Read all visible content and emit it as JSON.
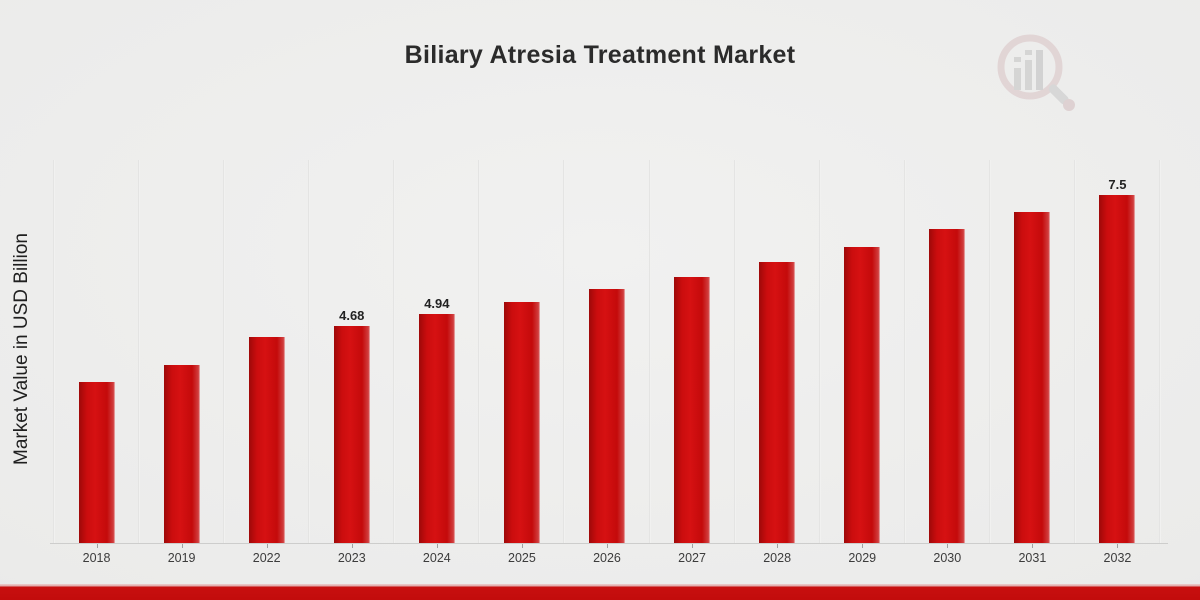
{
  "title": "Biliary Atresia Treatment Market",
  "watermark_icon": "magnifier-bar-chart-logo",
  "colors": {
    "bar_red": "#cc0d0e",
    "bar_edge_dark": "#9e0909",
    "bottom_band_red": "#c80f0f",
    "background": "#ebebea",
    "gridline": "#e8e8e7",
    "axis_line": "#cdcdcc",
    "title_text": "#2b2b2b",
    "tick_text": "#3c3c3c",
    "watermark_ring_pink": "#d9c2c4",
    "watermark_bars_gray": "#c2c2c2"
  },
  "chart_data": {
    "type": "bar",
    "title": "Biliary Atresia Treatment Market",
    "ylabel": "Market Value in USD Billion",
    "xlabel": "",
    "categories": [
      "2018",
      "2019",
      "2022",
      "2023",
      "2024",
      "2025",
      "2026",
      "2027",
      "2028",
      "2029",
      "2030",
      "2031",
      "2032"
    ],
    "values": [
      3.47,
      3.83,
      4.44,
      4.68,
      4.94,
      5.19,
      5.47,
      5.74,
      6.05,
      6.38,
      6.77,
      7.13,
      7.5
    ],
    "data_labels": [
      "",
      "",
      "",
      "4.68",
      "4.94",
      "",
      "",
      "",
      "",
      "",
      "",
      "",
      "7.5"
    ],
    "ylim": [
      0,
      8.25
    ],
    "grid": "vertical category separators only, no horizontal gridlines, no y-axis tick labels",
    "legend": false,
    "bar_color": "#cc0d0e"
  }
}
